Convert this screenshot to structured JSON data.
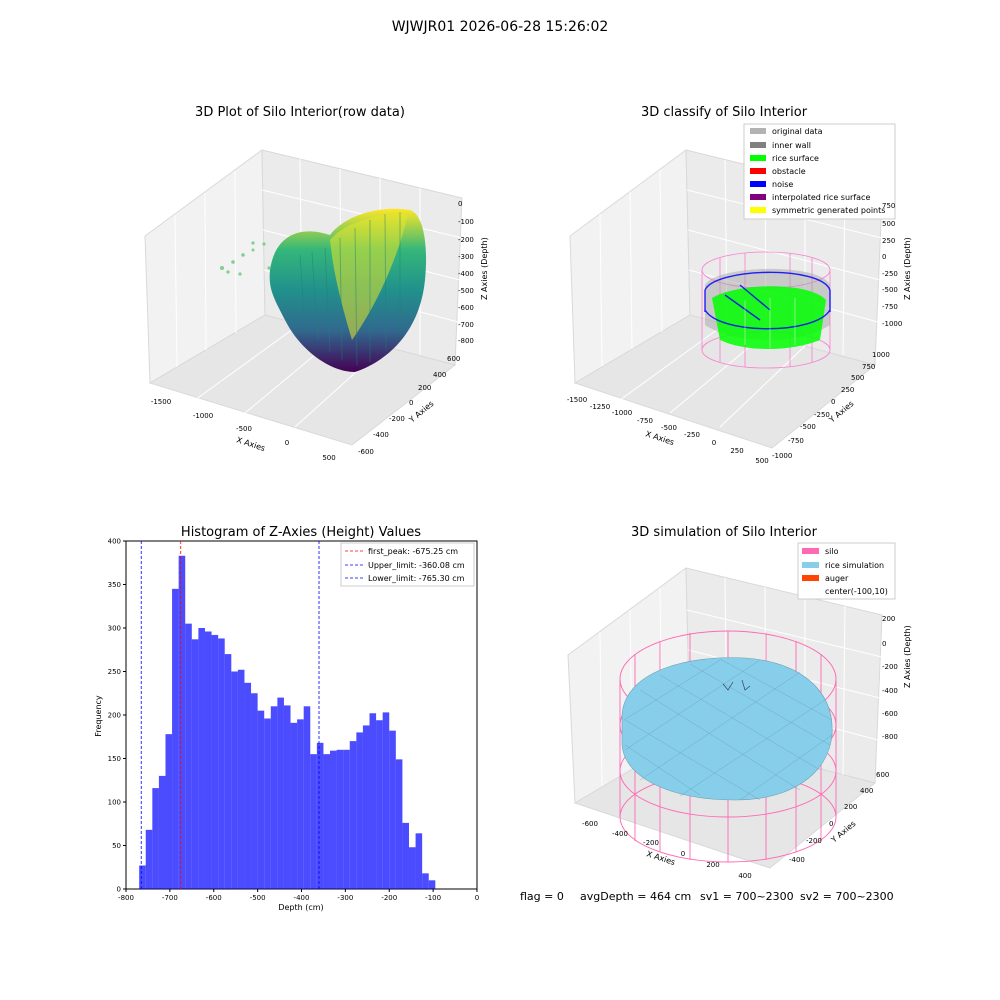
{
  "suptitle": "WJWJR01 2026-06-28 15:26:02",
  "footer": {
    "flag": "flag = 0",
    "avg": "avgDepth = 464 cm",
    "sv1": "sv1 = 700~2300",
    "sv2": "sv2 = 700~2300"
  },
  "panels": {
    "raw": {
      "title": "3D Plot of Silo Interior(row data)",
      "xlabel": "X Axies",
      "ylabel": "Y Axies",
      "zlabel": "Z Axies (Depth)",
      "xticks": [
        "-1500",
        "-1000",
        "-500",
        "0",
        "500"
      ],
      "yticks": [
        "600",
        "400",
        "200",
        "0",
        "-200",
        "-400",
        "-600"
      ],
      "zticks": [
        "0",
        "-100",
        "-200",
        "-300",
        "-400",
        "-500",
        "-600",
        "-700",
        "-800"
      ],
      "colormap": [
        "#440154",
        "#31688e",
        "#21918c",
        "#35b779",
        "#fde725"
      ]
    },
    "classify": {
      "title": "3D classify of Silo Interior",
      "xlabel": "X Axies",
      "ylabel": "Y Axies",
      "zlabel": "Z Axies (Depth)",
      "xticks": [
        "-1500",
        "-1250",
        "-1000",
        "-750",
        "-500",
        "-250",
        "0",
        "250",
        "500"
      ],
      "yticks": [
        "1000",
        "750",
        "500",
        "250",
        "0",
        "-250",
        "-500",
        "-750",
        "-1000"
      ],
      "zticks": [
        "750",
        "500",
        "250",
        "0",
        "-250",
        "-500",
        "-750",
        "-1000"
      ],
      "legend": [
        {
          "label": "original data",
          "color": "#b3b3b3"
        },
        {
          "label": "inner wall",
          "color": "#808080"
        },
        {
          "label": "rice surface",
          "color": "#00ff00"
        },
        {
          "label": "obstacle",
          "color": "#ff0000"
        },
        {
          "label": "noise",
          "color": "#0000ff"
        },
        {
          "label": "interpolated rice surface",
          "color": "#800080"
        },
        {
          "label": "symmetric generated points",
          "color": "#ffff00"
        }
      ]
    },
    "simulation": {
      "title": "3D simulation of Silo Interior",
      "xlabel": "X Axies",
      "ylabel": "Y Axies",
      "zlabel": "Z Axies (Depth)",
      "xticks": [
        "-600",
        "-400",
        "-200",
        "0",
        "200",
        "400"
      ],
      "yticks": [
        "600",
        "400",
        "200",
        "0",
        "-200",
        "-400"
      ],
      "zticks": [
        "200",
        "0",
        "-200",
        "-400",
        "-600",
        "-800"
      ],
      "legend": [
        {
          "label": "silo",
          "color": "#ff69b4"
        },
        {
          "label": "rice simulation",
          "color": "#87ceeb"
        },
        {
          "label": "auger",
          "color": "#ff4500"
        },
        {
          "label": "center(-100,10)",
          "color": ""
        }
      ]
    }
  },
  "chart_data": {
    "type": "bar",
    "title": "Histogram of Z-Axies (Height) Values",
    "xlabel": "Depth (cm)",
    "ylabel": "Frequency",
    "xlim": [
      -800,
      0
    ],
    "ylim": [
      0,
      400
    ],
    "xticks": [
      -800,
      -700,
      -600,
      -500,
      -400,
      -300,
      -200,
      -100,
      0
    ],
    "yticks": [
      0,
      50,
      100,
      150,
      200,
      250,
      300,
      350,
      400
    ],
    "bar_color": "#0000ff",
    "bin_start": -770,
    "bin_width": 15,
    "values": [
      27,
      68,
      116,
      130,
      178,
      345,
      383,
      305,
      287,
      300,
      296,
      292,
      288,
      270,
      250,
      252,
      237,
      225,
      205,
      196,
      210,
      220,
      211,
      191,
      195,
      210,
      155,
      168,
      155,
      159,
      160,
      160,
      170,
      180,
      188,
      202,
      194,
      203,
      182,
      149,
      76,
      48,
      64,
      18,
      10
    ],
    "vlines": [
      {
        "label": "first_peak: -675.25 cm",
        "x": -675.25,
        "color": "#ff0000"
      },
      {
        "label": "Upper_limit: -360.08 cm",
        "x": -360.08,
        "color": "#0000ff"
      },
      {
        "label": "Lower_limit: -765.30 cm",
        "x": -765.3,
        "color": "#0000ff"
      }
    ],
    "legend_position": "top-right"
  }
}
